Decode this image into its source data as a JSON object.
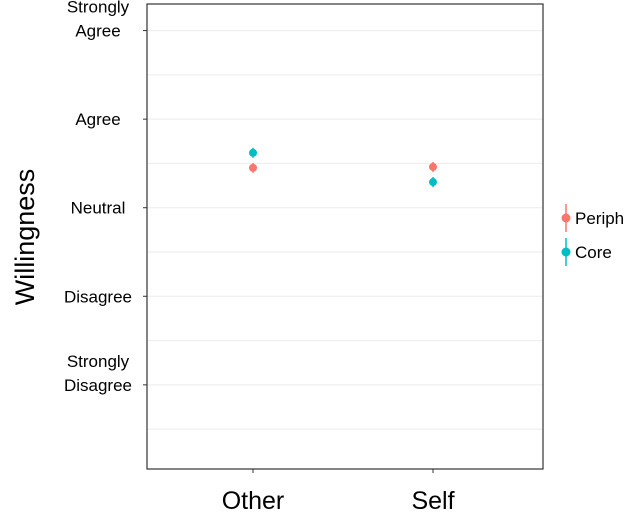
{
  "chart_data": {
    "type": "scatter",
    "ylabel": "Willingness",
    "xlabel": "",
    "categories": [
      "Other",
      "Self"
    ],
    "ylim": [
      -0.95,
      4.3
    ],
    "y_ticks": [
      {
        "value": 0,
        "lines": [
          "Strongly",
          "Disagree"
        ]
      },
      {
        "value": 1,
        "lines": [
          "Disagree"
        ]
      },
      {
        "value": 2,
        "lines": [
          "Neutral"
        ]
      },
      {
        "value": 3,
        "lines": [
          "Agree"
        ]
      },
      {
        "value": 4,
        "lines": [
          "Strongly",
          "Agree"
        ]
      }
    ],
    "grid": true,
    "legend_position": "right",
    "series": [
      {
        "name": "Periph",
        "color": "#F8766D",
        "values": [
          2.45,
          2.46
        ]
      },
      {
        "name": "Core",
        "color": "#00BFC4",
        "values": [
          2.62,
          2.29
        ]
      }
    ]
  }
}
